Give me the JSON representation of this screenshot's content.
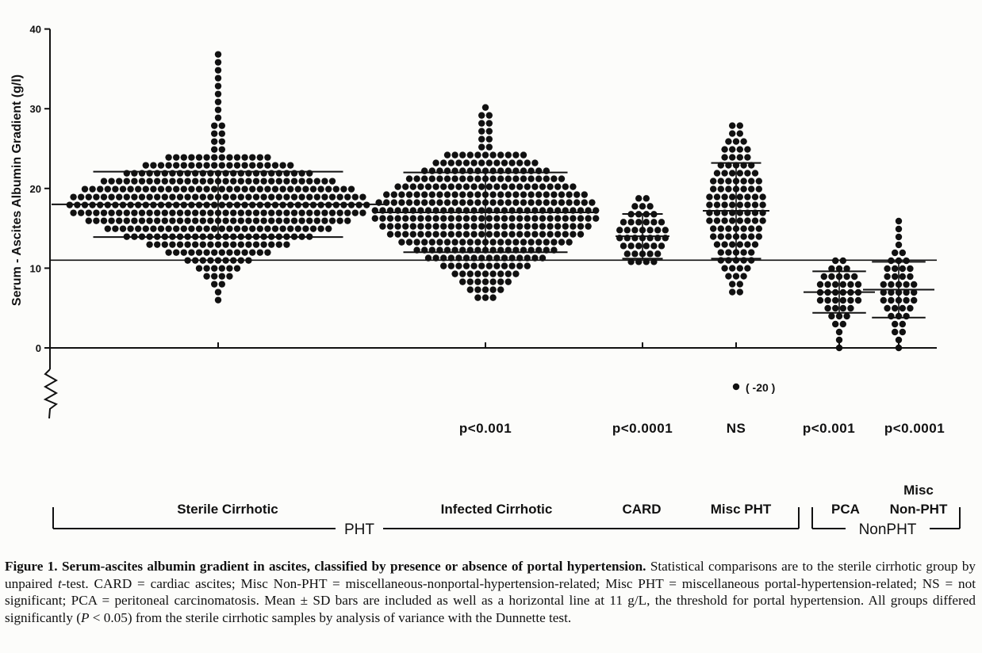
{
  "chart_data": {
    "type": "scatter",
    "subtype": "dot-strip",
    "ylabel": "Serum - Ascites Albumin Gradient (g/l)",
    "ylim": [
      0,
      40
    ],
    "yticks": [
      0,
      10,
      20,
      30,
      40
    ],
    "threshold": 11,
    "groups": [
      {
        "name": "Sterile Cirrhotic",
        "category": "PHT",
        "mean": 18.0,
        "sd": 4.1,
        "pvalue": "",
        "min": 6,
        "max": 37.3
      },
      {
        "name": "Infected Cirrhotic",
        "category": "PHT",
        "mean": 17.0,
        "sd": 5.0,
        "pvalue": "p<0.001",
        "min": 6.3,
        "max": 30.5
      },
      {
        "name": "CARD",
        "category": "PHT",
        "mean": 14.0,
        "sd": 2.8,
        "pvalue": "p<0.0001",
        "min": 10.8,
        "max": 19.6
      },
      {
        "name": "Misc PHT",
        "category": "PHT",
        "mean": 17.2,
        "sd": 6.0,
        "pvalue": "NS",
        "min": 7.0,
        "max": 28.2,
        "offscale_label": "( -20 )"
      },
      {
        "name": "PCA",
        "category": "NonPHT",
        "mean": 7.0,
        "sd": 2.6,
        "pvalue": "p<0.001",
        "min": 0,
        "max": 11
      },
      {
        "name": "Misc Non-PHT",
        "category": "NonPHT",
        "mean": 7.3,
        "sd": 3.5,
        "pvalue": "p<0.0001",
        "min": 0,
        "max": 16.4
      }
    ],
    "brackets": [
      {
        "label": "PHT"
      },
      {
        "label": "NonPHT"
      }
    ]
  },
  "labels": {
    "misc_nonpht_line1": "Misc",
    "misc_nonpht_line2": "Non-PHT"
  },
  "caption": {
    "figure_num": "Figure 1.",
    "title": "Serum-ascites albumin gradient in ascites, classified by presence or absence of portal hypertension.",
    "part1": " Statistical comparisons are to the sterile cirrhotic group by unpaired ",
    "t_italic": "t",
    "part2": "-test. CARD = cardiac ascites; Misc Non-PHT = miscellaneous-nonportal-hypertension-related; Misc PHT = miscellaneous portal-hypertension-related; NS = not significant; PCA = peritoneal carcinomatosis. Mean ± SD bars are included as well as a horizontal line at 11 g/L, the threshold for portal hypertension. All groups differed significantly (",
    "p_italic": "P",
    "part3": " < 0.05) from the sterile cirrhotic samples by analysis of variance with the Dunnette test."
  }
}
